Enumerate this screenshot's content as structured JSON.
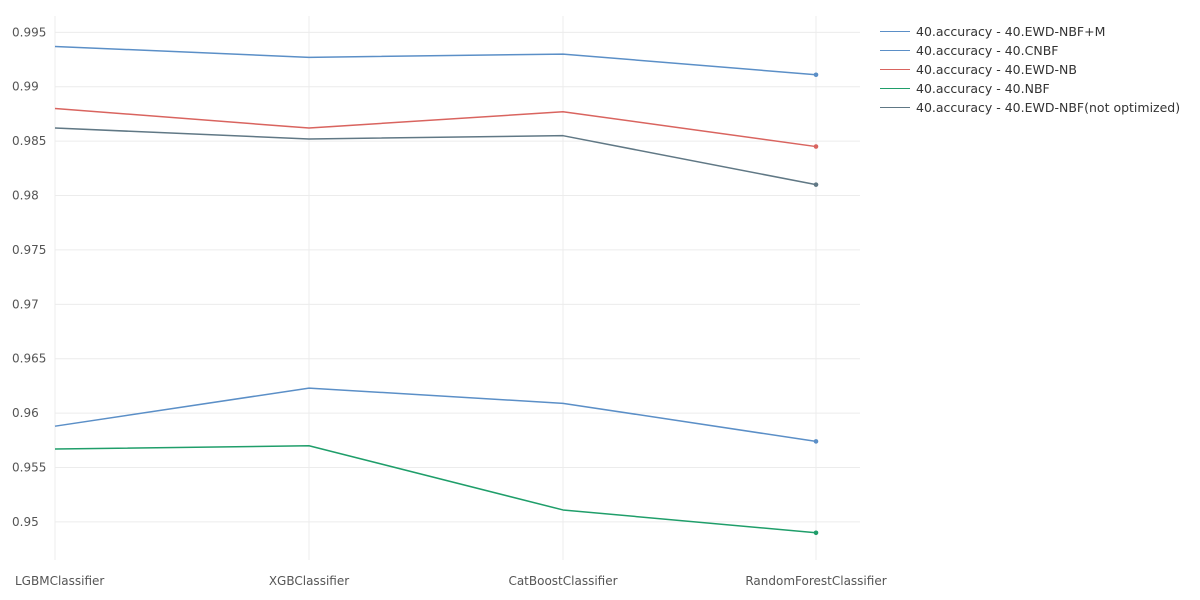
{
  "chart_data": {
    "type": "line",
    "title": "",
    "xlabel": "",
    "ylabel": "",
    "categories": [
      "LGBMClassifier",
      "XGBClassifier",
      "CatBoostClassifier",
      "RandomForestClassifier"
    ],
    "ylim": [
      0.9465,
      0.9965
    ],
    "yticks": [
      "0.995",
      "0.99",
      "0.985",
      "0.98",
      "0.975",
      "0.97",
      "0.965",
      "0.96",
      "0.955",
      "0.95"
    ],
    "grid": true,
    "legend_position": "top-right",
    "series": [
      {
        "name": "40.accuracy - 40.EWD-NBF+M",
        "color": "#5b8fc7",
        "values": [
          0.9937,
          0.9927,
          0.993,
          0.9911
        ]
      },
      {
        "name": "40.accuracy - 40.CNBF",
        "color": "#5b8fc7",
        "values": [
          0.9588,
          0.9623,
          0.9609,
          0.9574
        ]
      },
      {
        "name": "40.accuracy - 40.EWD-NB",
        "color": "#d9645f",
        "values": [
          0.988,
          0.9862,
          0.9877,
          0.9845
        ]
      },
      {
        "name": "40.accuracy - 40.NBF",
        "color": "#1f9e6a",
        "values": [
          0.9567,
          0.957,
          0.9511,
          0.949
        ]
      },
      {
        "name": "40.accuracy - 40.EWD-NBF(not optimized)",
        "color": "#607885",
        "values": [
          0.9862,
          0.9852,
          0.9855,
          0.981
        ]
      }
    ]
  }
}
